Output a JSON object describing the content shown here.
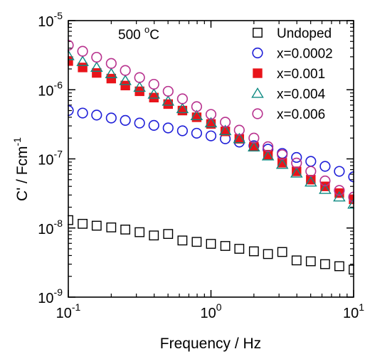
{
  "chart_data": {
    "type": "scatter",
    "title": "",
    "annotation": {
      "text": "500 ",
      "degree": "o",
      "unit": "C"
    },
    "xlabel": "Frequency / Hz",
    "ylabel": {
      "base": "C' / Fcm",
      "exp": "-1"
    },
    "xscale": "log",
    "yscale": "log",
    "xlim": [
      0.1,
      10
    ],
    "ylim": [
      1e-09,
      1e-05
    ],
    "x_ticks": [
      {
        "value": 0.1,
        "base": "10",
        "exp": "-1"
      },
      {
        "value": 1,
        "base": "10",
        "exp": "0"
      },
      {
        "value": 10,
        "base": "10",
        "exp": "1"
      }
    ],
    "y_ticks": [
      {
        "value": 1e-09,
        "base": "10",
        "exp": "-9"
      },
      {
        "value": 1e-08,
        "base": "10",
        "exp": "-8"
      },
      {
        "value": 1e-07,
        "base": "10",
        "exp": "-7"
      },
      {
        "value": 1e-06,
        "base": "10",
        "exp": "-6"
      },
      {
        "value": 1e-05,
        "base": "10",
        "exp": "-5"
      }
    ],
    "grid": false,
    "legend_position": "top-right",
    "x": [
      0.1,
      0.126,
      0.158,
      0.2,
      0.251,
      0.316,
      0.398,
      0.501,
      0.631,
      0.794,
      1.0,
      1.26,
      1.58,
      2.0,
      2.51,
      3.16,
      3.98,
      5.01,
      6.31,
      7.94,
      10.0
    ],
    "series": [
      {
        "name": "Undoped",
        "marker": "open-square",
        "color": "#000000",
        "values": [
          1.3e-08,
          1.15e-08,
          1.08e-08,
          1.02e-08,
          9.5e-09,
          8.7e-09,
          7.8e-09,
          8.2e-09,
          6.6e-09,
          6.3e-09,
          5.9e-09,
          5.5e-09,
          5e-09,
          4.6e-09,
          4.2e-09,
          4.5e-09,
          3.4e-09,
          3.3e-09,
          3e-09,
          2.8e-09,
          2.5e-09
        ]
      },
      {
        "name": "x=0.0002",
        "marker": "open-circle",
        "color": "#1f1fd8",
        "values": [
          5e-07,
          4.6e-07,
          4.3e-07,
          3.9e-07,
          3.6e-07,
          3.3e-07,
          3.05e-07,
          2.8e-07,
          2.55e-07,
          2.35e-07,
          2.15e-07,
          1.95e-07,
          1.75e-07,
          1.55e-07,
          1.38e-07,
          1.2e-07,
          1.05e-07,
          9.2e-08,
          7.8e-08,
          6.6e-08,
          5.5e-08
        ]
      },
      {
        "name": "x=0.001",
        "marker": "filled-square",
        "color": "#e8141a",
        "values": [
          2.6e-06,
          2.1e-06,
          1.75e-06,
          1.45e-06,
          1.15e-06,
          9.5e-07,
          7.7e-07,
          6.2e-07,
          5e-07,
          4e-07,
          3.2e-07,
          2.5e-07,
          1.95e-07,
          1.5e-07,
          1.15e-07,
          8.8e-08,
          6.6e-08,
          5e-08,
          4e-08,
          3.2e-08,
          2.6e-08
        ]
      },
      {
        "name": "x=0.004",
        "marker": "open-triangle",
        "color": "#0e8a82",
        "values": [
          3.1e-06,
          2.55e-06,
          2.1e-06,
          1.7e-06,
          1.35e-06,
          1.08e-06,
          8.6e-07,
          6.8e-07,
          5.3e-07,
          4.2e-07,
          3.3e-07,
          2.55e-07,
          1.95e-07,
          1.48e-07,
          1.1e-07,
          8.3e-08,
          6.2e-08,
          4.6e-08,
          3.6e-08,
          2.8e-08,
          2.2e-08
        ]
      },
      {
        "name": "x=0.006",
        "marker": "open-circle",
        "color": "#b8328e",
        "values": [
          4.4e-06,
          3.6e-06,
          2.95e-06,
          2.4e-06,
          1.9e-06,
          1.5e-06,
          1.2e-06,
          9.5e-07,
          7.4e-07,
          5.7e-07,
          4.4e-07,
          3.4e-07,
          2.6e-07,
          2e-07,
          1.5e-07,
          1.15e-07,
          8.7e-08,
          6.6e-08,
          4.8e-08,
          3.5e-08,
          2.8e-08
        ]
      }
    ]
  }
}
